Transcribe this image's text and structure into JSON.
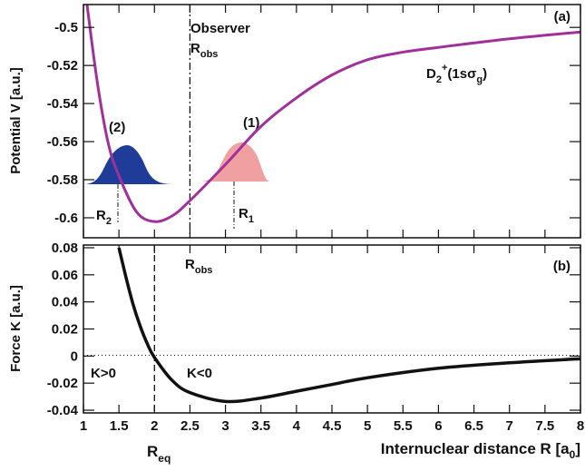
{
  "chart_data": [
    {
      "type": "line",
      "panel_label": "(a)",
      "ylabel": "Potential V [a.u.]",
      "x": [
        1.05,
        1.2,
        1.35,
        1.5,
        1.75,
        2.0,
        2.25,
        2.5,
        3.0,
        3.5,
        4.0,
        4.5,
        5.0,
        5.5,
        6.0,
        7.0,
        8.0
      ],
      "values": [
        -0.488,
        -0.53,
        -0.561,
        -0.578,
        -0.597,
        -0.602,
        -0.599,
        -0.591,
        -0.572,
        -0.552,
        -0.537,
        -0.525,
        -0.517,
        -0.513,
        -0.5105,
        -0.506,
        -0.5024
      ],
      "color": "#a0309a",
      "xlim": [
        1,
        8
      ],
      "ylim": [
        -0.6105,
        -0.488
      ],
      "xticks": [
        1,
        1.5,
        2,
        2.5,
        3,
        3.5,
        4,
        4.5,
        5,
        5.5,
        6,
        6.5,
        7,
        7.5,
        8
      ],
      "yticks": [
        -0.5,
        -0.52,
        -0.54,
        -0.56,
        -0.58,
        -0.6
      ],
      "annotations": {
        "observer": "Observer",
        "r_obs": [
          "R",
          "obs"
        ],
        "curve_label": [
          "D",
          "2",
          "+",
          "(1sσ",
          "g",
          ")"
        ],
        "packet_1": "(1)",
        "packet_2": "(2)",
        "r1": [
          "R",
          "1"
        ],
        "r2": [
          "R",
          "2"
        ]
      }
    },
    {
      "type": "line",
      "panel_label": "(b)",
      "ylabel": "Force K [a.u.]",
      "xlabel": [
        "Internuclear distance R [a",
        "0",
        "]"
      ],
      "x": [
        1.5,
        1.6,
        1.7,
        1.8,
        1.9,
        2.0,
        2.25,
        2.5,
        3.0,
        3.5,
        4.0,
        4.5,
        5.0,
        6.0,
        7.0,
        8.0
      ],
      "values": [
        0.08,
        0.058,
        0.038,
        0.022,
        0.009,
        -0.001,
        -0.018,
        -0.027,
        -0.0335,
        -0.031,
        -0.026,
        -0.021,
        -0.016,
        -0.009,
        -0.005,
        -0.002
      ],
      "color": "#111111",
      "xlim": [
        1,
        8
      ],
      "ylim": [
        -0.042,
        0.082
      ],
      "xticks": [
        1,
        1.5,
        2,
        2.5,
        3,
        3.5,
        4,
        4.5,
        5,
        5.5,
        6,
        6.5,
        7,
        7.5,
        8
      ],
      "yticks": [
        0.08,
        0.06,
        0.04,
        0.02,
        0,
        -0.02,
        -0.04
      ],
      "annotations": {
        "r_obs": [
          "R",
          "obs"
        ],
        "k_pos": "K>0",
        "k_neg": "K<0",
        "r_eq": [
          "R",
          "eq"
        ]
      }
    }
  ]
}
